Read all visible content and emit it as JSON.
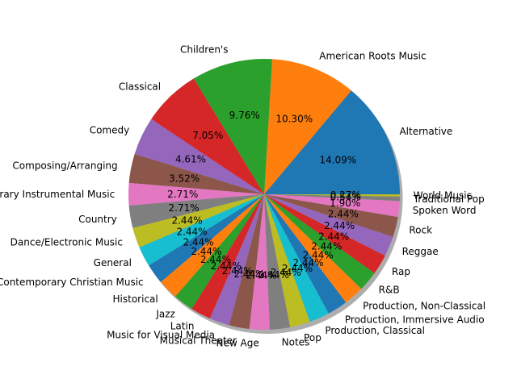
{
  "chart_data": {
    "type": "pie",
    "title": "",
    "shadow": true,
    "start_angle": 0,
    "direction": "counterclockwise",
    "categories": [
      "Alternative",
      "American Roots Music",
      "Children's",
      "Classical",
      "Comedy",
      "Composing/Arranging",
      "Contemporary Instrumental Music",
      "Country",
      "Dance/Electronic Music",
      "General",
      "Contemporary Christian Music",
      "Historical",
      "Jazz",
      "Latin",
      "Music for Visual Media",
      "Musical Theater",
      "New Age",
      "Notes",
      "Pop",
      "Production, Classical",
      "Production, Immersive Audio",
      "Production, Non-Classical",
      "R&B",
      "Rap",
      "Reggae",
      "Rock",
      "Spoken Word",
      "Traditional Pop",
      "World Music"
    ],
    "values": [
      14.09,
      10.3,
      9.76,
      7.05,
      4.61,
      3.52,
      2.71,
      2.71,
      2.44,
      2.44,
      2.44,
      2.44,
      2.44,
      2.44,
      2.44,
      2.44,
      2.44,
      2.44,
      2.44,
      2.44,
      2.44,
      2.44,
      2.44,
      2.44,
      2.44,
      2.44,
      1.9,
      0.54,
      0.27
    ],
    "percent_labels": [
      "14.09%",
      "10.30%",
      "9.76%",
      "7.05%",
      "4.61%",
      "3.52%",
      "2.71%",
      "2.71%",
      "2.44%",
      "2.44%",
      "2.44%",
      "2.44%",
      "2.44%",
      "2.44%",
      "2.44%",
      "2.44%",
      "2.44%",
      "2.44%",
      "2.44%",
      "2.44%",
      "2.44%",
      "2.44%",
      "2.44%",
      "2.44%",
      "2.44%",
      "2.44%",
      "1.90%",
      "0.54%",
      "0.27%"
    ],
    "colors": [
      "#1f77b4",
      "#ff7f0e",
      "#2ca02c",
      "#d62728",
      "#9467bd",
      "#8c564b",
      "#e377c2",
      "#7f7f7f",
      "#bcbd22",
      "#17becf"
    ]
  }
}
